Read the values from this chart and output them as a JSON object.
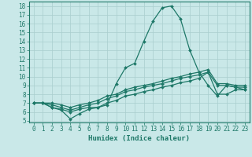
{
  "xlabel": "Humidex (Indice chaleur)",
  "bg_color": "#c9e8e8",
  "grid_color": "#a8cece",
  "line_color": "#1e7868",
  "spine_color": "#1e7868",
  "xlim": [
    -0.5,
    23.5
  ],
  "ylim": [
    4.8,
    18.5
  ],
  "xticks": [
    0,
    1,
    2,
    3,
    4,
    5,
    6,
    7,
    8,
    9,
    10,
    11,
    12,
    13,
    14,
    15,
    16,
    17,
    18,
    19,
    20,
    21,
    22,
    23
  ],
  "yticks": [
    5,
    6,
    7,
    8,
    9,
    10,
    11,
    12,
    13,
    14,
    15,
    16,
    17,
    18
  ],
  "line1_x": [
    0,
    1,
    2,
    3,
    4,
    5,
    6,
    7,
    8,
    9,
    10,
    11,
    12,
    13,
    14,
    15,
    16,
    17,
    18,
    19,
    20,
    21,
    22,
    23
  ],
  "line1_y": [
    7.0,
    7.0,
    6.5,
    6.3,
    6.0,
    6.3,
    6.5,
    6.5,
    6.8,
    9.2,
    11.0,
    11.5,
    14.0,
    16.3,
    17.8,
    18.0,
    16.5,
    13.0,
    10.5,
    9.0,
    7.8,
    9.0,
    8.8,
    8.5
  ],
  "line2_x": [
    0,
    1,
    2,
    3,
    4,
    5,
    6,
    7,
    8,
    9,
    10,
    11,
    12,
    13,
    14,
    15,
    16,
    17,
    18,
    19,
    20,
    21,
    22,
    23
  ],
  "line2_y": [
    7.0,
    7.0,
    6.5,
    6.2,
    5.2,
    5.8,
    6.3,
    6.5,
    7.0,
    7.3,
    7.8,
    8.0,
    8.3,
    8.5,
    8.8,
    9.0,
    9.3,
    9.5,
    9.8,
    10.5,
    8.0,
    8.0,
    8.5,
    8.5
  ],
  "line3_x": [
    0,
    1,
    2,
    3,
    4,
    5,
    6,
    7,
    8,
    9,
    10,
    11,
    12,
    13,
    14,
    15,
    16,
    17,
    18,
    19,
    20,
    21,
    22,
    23
  ],
  "line3_y": [
    7.0,
    7.0,
    6.8,
    6.5,
    6.2,
    6.5,
    6.8,
    7.0,
    7.5,
    7.8,
    8.3,
    8.5,
    8.8,
    9.0,
    9.2,
    9.5,
    9.8,
    10.0,
    10.2,
    10.5,
    9.0,
    9.0,
    8.8,
    8.8
  ],
  "line4_x": [
    0,
    1,
    2,
    3,
    4,
    5,
    6,
    7,
    8,
    9,
    10,
    11,
    12,
    13,
    14,
    15,
    16,
    17,
    18,
    19,
    20,
    21,
    22,
    23
  ],
  "line4_y": [
    7.0,
    7.0,
    7.0,
    6.8,
    6.5,
    6.8,
    7.0,
    7.3,
    7.8,
    8.0,
    8.5,
    8.8,
    9.0,
    9.2,
    9.5,
    9.8,
    10.0,
    10.3,
    10.5,
    10.8,
    9.2,
    9.2,
    9.0,
    9.0
  ],
  "tick_fontsize": 5.5,
  "xlabel_fontsize": 6.5,
  "marker_size": 2.0,
  "line_width": 0.9
}
